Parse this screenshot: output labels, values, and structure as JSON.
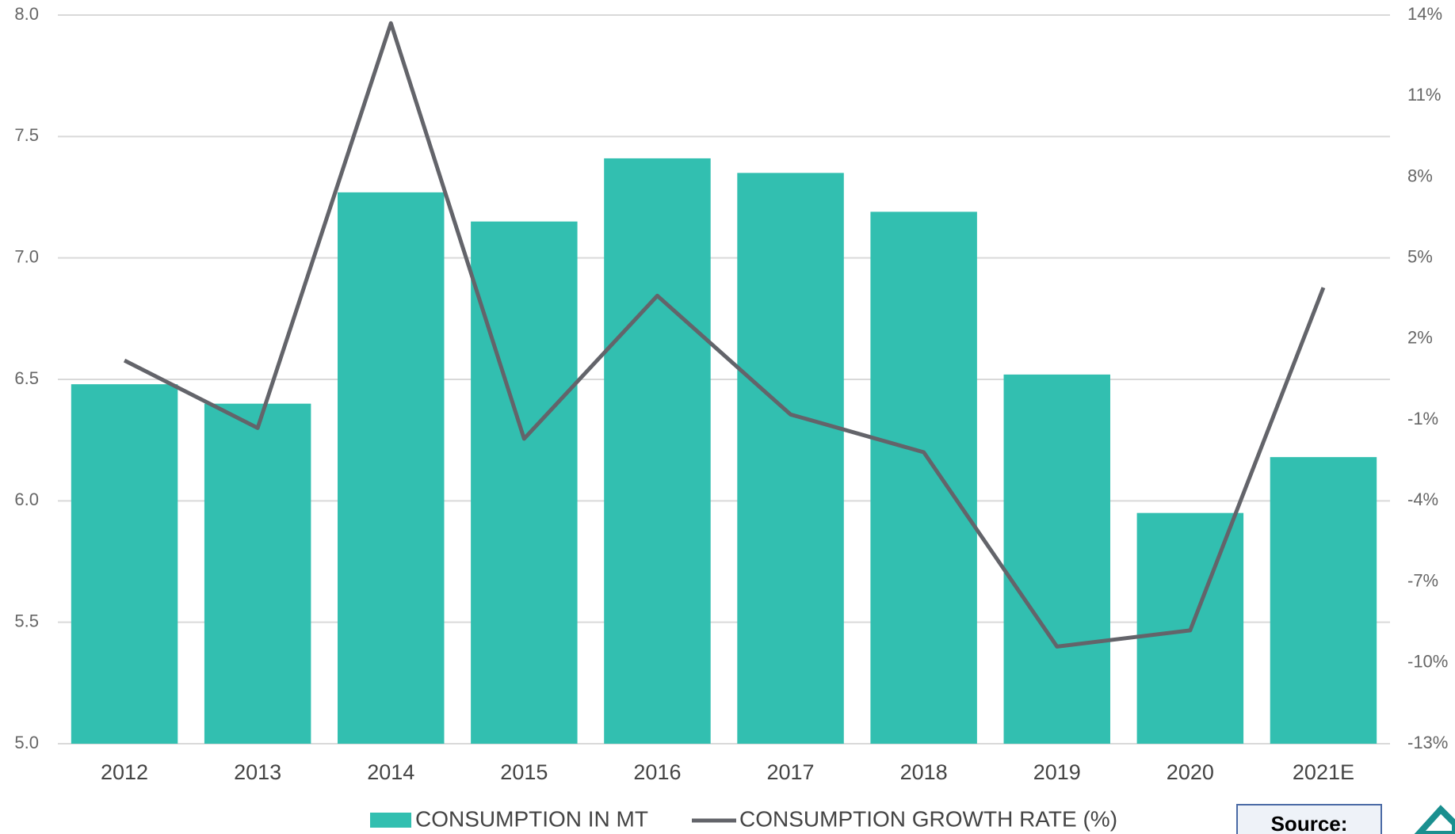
{
  "chart_data": {
    "type": "bar_line",
    "categories": [
      "2012",
      "2013",
      "2014",
      "2015",
      "2016",
      "2017",
      "2018",
      "2019",
      "2020",
      "2021E"
    ],
    "series": [
      {
        "name": "CONSUMPTION IN MT",
        "color": "#32bfb0",
        "values": [
          6.48,
          6.4,
          7.27,
          7.15,
          7.41,
          7.35,
          7.19,
          6.52,
          5.95,
          6.18
        ]
      },
      {
        "name": "CONSUMPTION GROWTH RATE (%)",
        "color": "#63646a",
        "axis": "y2",
        "values": [
          1.2,
          -1.3,
          13.7,
          -1.7,
          3.6,
          -0.8,
          -2.2,
          -9.4,
          -8.8,
          3.9
        ]
      }
    ],
    "ylim": [
      5,
      8
    ],
    "yticks": [
      {
        "value": 5,
        "label": "5.0"
      },
      {
        "value": 5.5,
        "label": "5.5"
      },
      {
        "value": 6,
        "label": "6.0"
      },
      {
        "value": 6.5,
        "label": "6.5"
      },
      {
        "value": 7,
        "label": "7.0"
      },
      {
        "value": 7.5,
        "label": "7.5"
      },
      {
        "value": 8,
        "label": "8.0"
      }
    ],
    "y2lim": [
      -13,
      14
    ],
    "y2ticks": [
      {
        "value": -13,
        "label": "-13%"
      },
      {
        "value": -10,
        "label": "-10%"
      },
      {
        "value": -7,
        "label": "-7%"
      },
      {
        "value": -4,
        "label": "-4%"
      },
      {
        "value": -1,
        "label": "-1%"
      },
      {
        "value": 2,
        "label": "2%"
      },
      {
        "value": 5,
        "label": "5%"
      },
      {
        "value": 8,
        "label": "8%"
      },
      {
        "value": 11,
        "label": "11%"
      },
      {
        "value": 14,
        "label": "14%"
      }
    ],
    "grid": true,
    "legend": "bottom",
    "source_label": "Source:"
  }
}
